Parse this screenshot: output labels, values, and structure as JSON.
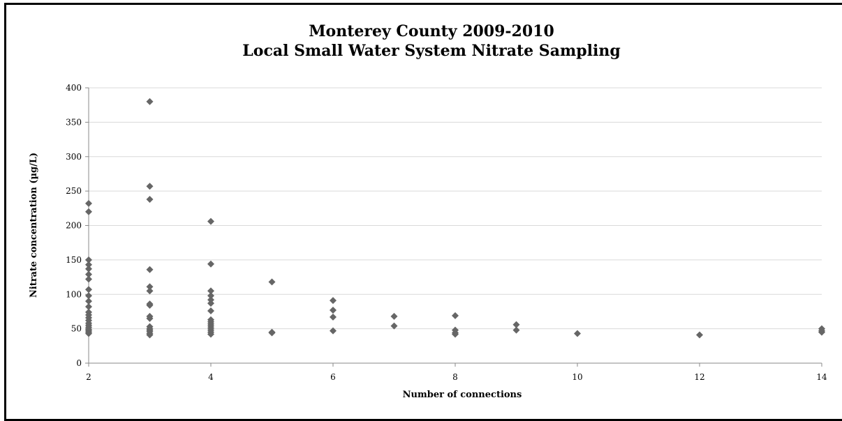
{
  "chart_data": {
    "type": "scatter",
    "title": "Monterey County 2009-2010",
    "subtitle": "Local Small Water System Nitrate Sampling",
    "xlabel": "Number of connections",
    "ylabel": "Nitrate concentration (µg/L)",
    "xlim": [
      2,
      14
    ],
    "ylim": [
      0,
      400
    ],
    "xticks": [
      2,
      4,
      6,
      8,
      10,
      12,
      14
    ],
    "yticks": [
      0,
      50,
      100,
      150,
      200,
      250,
      300,
      350,
      400
    ],
    "grid": "horizontal",
    "marker": "diamond",
    "point_color": "#666666",
    "points": [
      [
        2,
        232
      ],
      [
        2,
        220
      ],
      [
        2,
        150
      ],
      [
        2,
        143
      ],
      [
        2,
        137
      ],
      [
        2,
        129
      ],
      [
        2,
        122
      ],
      [
        2,
        107
      ],
      [
        2,
        98
      ],
      [
        2,
        90
      ],
      [
        2,
        82
      ],
      [
        2,
        74
      ],
      [
        2,
        70
      ],
      [
        2,
        66
      ],
      [
        2,
        62
      ],
      [
        2,
        58
      ],
      [
        2,
        55
      ],
      [
        2,
        52
      ],
      [
        2,
        49
      ],
      [
        2,
        47
      ],
      [
        2,
        45
      ],
      [
        2,
        43
      ],
      [
        3,
        380
      ],
      [
        3,
        257
      ],
      [
        3,
        238
      ],
      [
        3,
        136
      ],
      [
        3,
        111
      ],
      [
        3,
        105
      ],
      [
        3,
        86
      ],
      [
        3,
        84
      ],
      [
        3,
        68
      ],
      [
        3,
        65
      ],
      [
        3,
        53
      ],
      [
        3,
        50
      ],
      [
        3,
        48
      ],
      [
        3,
        46
      ],
      [
        3,
        43
      ],
      [
        3,
        41
      ],
      [
        4,
        206
      ],
      [
        4,
        144
      ],
      [
        4,
        105
      ],
      [
        4,
        98
      ],
      [
        4,
        92
      ],
      [
        4,
        87
      ],
      [
        4,
        76
      ],
      [
        4,
        63
      ],
      [
        4,
        60
      ],
      [
        4,
        57
      ],
      [
        4,
        54
      ],
      [
        4,
        51
      ],
      [
        4,
        48
      ],
      [
        4,
        45
      ],
      [
        4,
        42
      ],
      [
        5,
        118
      ],
      [
        5,
        45
      ],
      [
        5,
        44
      ],
      [
        6,
        91
      ],
      [
        6,
        77
      ],
      [
        6,
        67
      ],
      [
        6,
        47
      ],
      [
        7,
        68
      ],
      [
        7,
        54
      ],
      [
        8,
        69
      ],
      [
        8,
        48
      ],
      [
        8,
        44
      ],
      [
        8,
        42
      ],
      [
        9,
        56
      ],
      [
        9,
        48
      ],
      [
        10,
        43
      ],
      [
        12,
        41
      ],
      [
        14,
        50
      ],
      [
        14,
        47
      ],
      [
        14,
        45
      ]
    ]
  }
}
